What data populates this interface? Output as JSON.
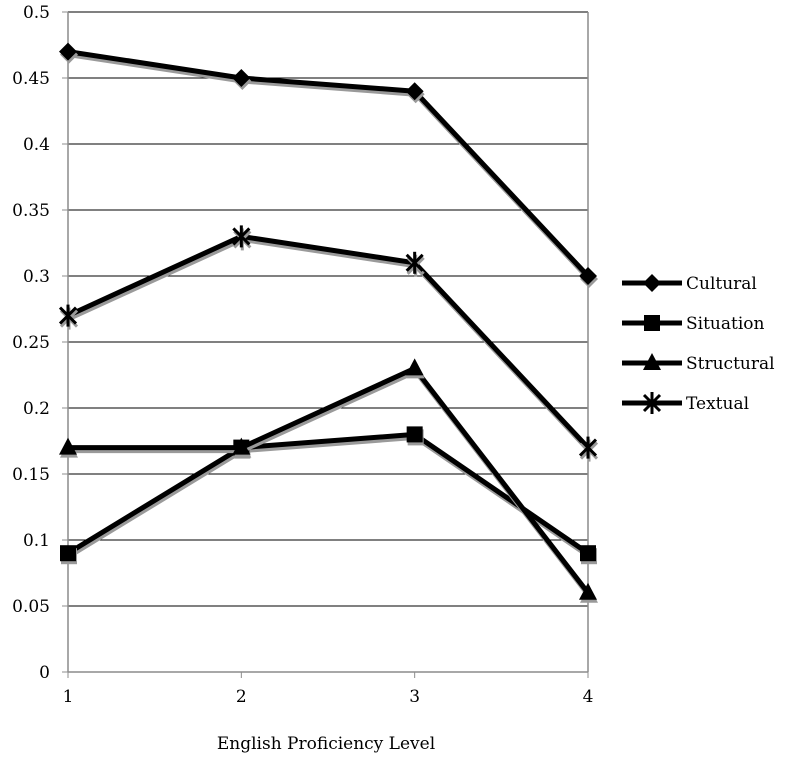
{
  "chart_data": {
    "type": "line",
    "title": "",
    "xlabel": "English Proficiency Level",
    "ylabel": "",
    "categories": [
      "1",
      "2",
      "3",
      "4"
    ],
    "ylim": [
      0,
      0.5
    ],
    "yticks": [
      "0",
      "0.05",
      "0.1",
      "0.15",
      "0.2",
      "0.25",
      "0.3",
      "0.35",
      "0.4",
      "0.45",
      "0.5"
    ],
    "grid": "horizontal",
    "legend_position": "right",
    "series": [
      {
        "name": "Cultural",
        "marker": "diamond",
        "values": [
          0.47,
          0.45,
          0.44,
          0.3
        ]
      },
      {
        "name": "Situation",
        "marker": "square",
        "values": [
          0.09,
          0.17,
          0.18,
          0.09
        ]
      },
      {
        "name": "Structural",
        "marker": "triangle",
        "values": [
          0.17,
          0.17,
          0.23,
          0.06
        ]
      },
      {
        "name": "Textual",
        "marker": "asterisk",
        "values": [
          0.27,
          0.33,
          0.31,
          0.17
        ]
      }
    ],
    "colors": {
      "line": "#000000",
      "shadow": "#9a9a9a",
      "grid": "#000000",
      "frame": "#8c8c8c"
    }
  }
}
